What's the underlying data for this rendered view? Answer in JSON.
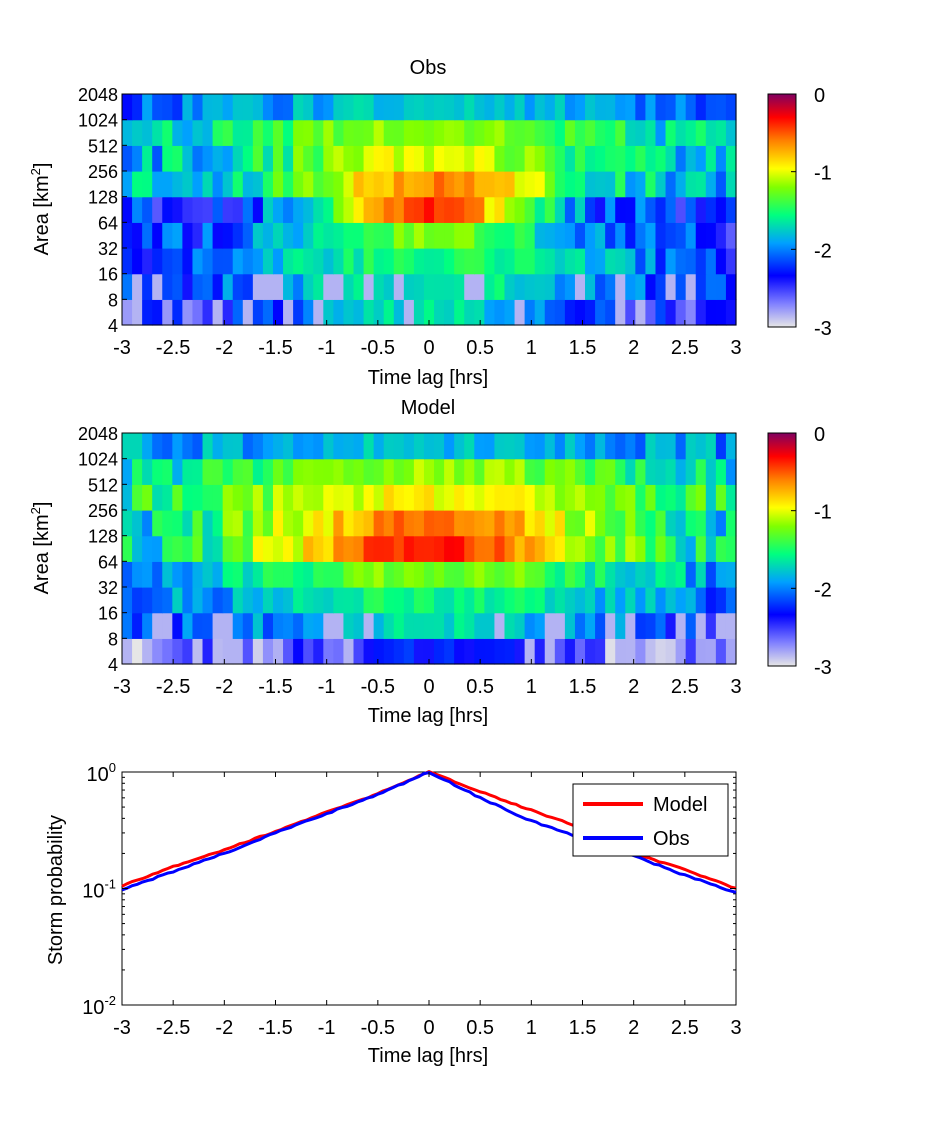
{
  "chart_data": [
    {
      "type": "heatmap",
      "title": "Obs",
      "xlabel": "Time lag [hrs]",
      "ylabel": "Area [km²]",
      "ylabel_base": "Area [km",
      "ylabel_sup": "2",
      "ylabel_end": "]",
      "xlim": [
        -3,
        3
      ],
      "xticks": [
        "-3",
        "-2.5",
        "-2",
        "-1.5",
        "-1",
        "-0.5",
        "0",
        "0.5",
        "1",
        "1.5",
        "2",
        "2.5",
        "3"
      ],
      "yticks": [
        "4",
        "8",
        "16",
        "32",
        "64",
        "128",
        "256",
        "512",
        "1024",
        "2048"
      ],
      "y_bins": [
        "4-8",
        "8-16",
        "16-32",
        "32-64",
        "64-128",
        "128-256",
        "256-512",
        "512-1024",
        "1024-2048"
      ],
      "x_bins_count": 61,
      "value_scale": "log10 probability",
      "peak": {
        "x": 0,
        "y_bin": "64-128",
        "value": -0.4
      },
      "row_peak_values": [
        -1.7,
        -1.6,
        -1.5,
        -1.25,
        -0.4,
        -0.6,
        -1.0,
        -1.15,
        -1.8
      ],
      "row_widths_hrs": [
        1.4,
        1.6,
        1.7,
        1.1,
        0.8,
        1.0,
        1.2,
        1.6,
        2.0
      ],
      "row_edge_values": [
        -2.7,
        -2.5,
        -2.4,
        -2.3,
        -2.3,
        -1.9,
        -1.9,
        -2.0,
        -2.2
      ],
      "colorbar": {
        "min": -3,
        "max": 0,
        "ticks": [
          "0",
          "-1",
          "-2",
          "-3"
        ]
      }
    },
    {
      "type": "heatmap",
      "title": "Model",
      "xlabel": "Time lag [hrs]",
      "ylabel": "Area [km²]",
      "ylabel_base": "Area [km",
      "ylabel_sup": "2",
      "ylabel_end": "]",
      "xlim": [
        -3,
        3
      ],
      "xticks": [
        "-3",
        "-2.5",
        "-2",
        "-1.5",
        "-1",
        "-0.5",
        "0",
        "0.5",
        "1",
        "1.5",
        "2",
        "2.5",
        "3"
      ],
      "yticks": [
        "4",
        "8",
        "16",
        "32",
        "64",
        "128",
        "256",
        "512",
        "1024",
        "2048"
      ],
      "y_bins": [
        "4-8",
        "8-16",
        "16-32",
        "32-64",
        "64-128",
        "128-256",
        "256-512",
        "512-1024",
        "1024-2048"
      ],
      "x_bins_count": 61,
      "value_scale": "log10 probability",
      "peak": {
        "x": 0,
        "y_bin": "64-128",
        "value": -0.4
      },
      "row_peak_values": [
        -2.3,
        -1.7,
        -1.55,
        -1.2,
        -0.4,
        -0.55,
        -0.95,
        -1.15,
        -1.8
      ],
      "row_widths_hrs": [
        1.0,
        1.6,
        1.8,
        1.5,
        1.3,
        1.4,
        1.7,
        1.9,
        2.2
      ],
      "row_edge_values": [
        -2.8,
        -2.4,
        -2.3,
        -2.0,
        -1.8,
        -1.9,
        -1.7,
        -2.0,
        -2.1
      ],
      "colorbar": {
        "min": -3,
        "max": 0,
        "ticks": [
          "0",
          "-1",
          "-2",
          "-3"
        ]
      }
    },
    {
      "type": "line",
      "title": "",
      "xlabel": "Time lag [hrs]",
      "ylabel": "Storm probability",
      "xlim": [
        -3,
        3
      ],
      "ylim": [
        0.01,
        1
      ],
      "yscale": "log",
      "xticks": [
        "-3",
        "-2.5",
        "-2",
        "-1.5",
        "-1",
        "-0.5",
        "0",
        "0.5",
        "1",
        "1.5",
        "2",
        "2.5",
        "3"
      ],
      "yticks": [
        {
          "base": "10",
          "exp": "0",
          "value": 1
        },
        {
          "base": "10",
          "exp": "-1",
          "value": 0.1
        },
        {
          "base": "10",
          "exp": "-2",
          "value": 0.01
        }
      ],
      "legend_position": "top-right",
      "x": [
        -3,
        -2.5,
        -2,
        -1.5,
        -1,
        -0.5,
        0,
        0.5,
        1,
        1.5,
        2,
        2.5,
        3
      ],
      "series": [
        {
          "name": "Model",
          "color": "#ff0000",
          "values": [
            0.105,
            0.155,
            0.215,
            0.31,
            0.45,
            0.65,
            1.0,
            0.68,
            0.47,
            0.33,
            0.2,
            0.145,
            0.1
          ]
        },
        {
          "name": "Obs",
          "color": "#0000ff",
          "values": [
            0.098,
            0.14,
            0.2,
            0.3,
            0.44,
            0.64,
            1.0,
            0.6,
            0.38,
            0.27,
            0.19,
            0.13,
            0.092
          ]
        }
      ]
    }
  ]
}
